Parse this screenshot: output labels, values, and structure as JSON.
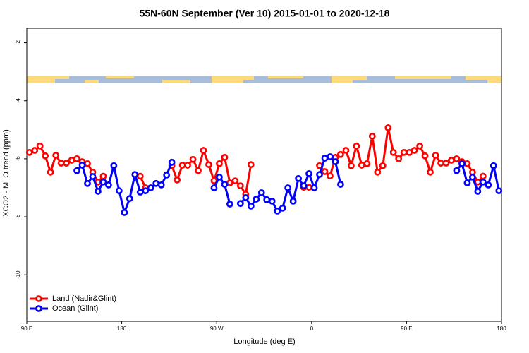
{
  "chart_data": {
    "type": "line",
    "title": "55N-60N September (Ver 10)   2015-01-01 to 2020-12-18",
    "x_label": "Longitude (deg E)",
    "y_label": "XCO2 - MLO trend (ppm)",
    "xlim": [
      90,
      540
    ],
    "ylim": [
      -11.6,
      -1.5
    ],
    "xticks": [
      {
        "value": 90,
        "label": "90 E"
      },
      180,
      {
        "value": 270,
        "label": "90 W"
      },
      {
        "value": 360,
        "label": "0"
      },
      {
        "value": 450,
        "label": "90 E"
      },
      {
        "value": 540,
        "label": "180"
      }
    ],
    "yticks": [
      -2,
      -4,
      -6,
      -8,
      -10
    ],
    "legend": "bottom-left",
    "x": [
      92.5,
      97.5,
      102.5,
      107.5,
      112.5,
      117.5,
      122.5,
      127.5,
      132.5,
      137.5,
      142.5,
      147.5,
      152.5,
      157.5,
      162.5,
      167.5,
      172.5,
      177.5,
      182.5,
      187.5,
      192.5,
      197.5,
      202.5,
      207.5,
      212.5,
      217.5,
      222.5,
      227.5,
      232.5,
      237.5,
      242.5,
      247.5,
      252.5,
      257.5,
      262.5,
      267.5,
      272.5,
      277.5,
      282.5,
      287.5,
      292.5,
      297.5,
      302.5,
      307.5,
      312.5,
      317.5,
      322.5,
      327.5,
      332.5,
      337.5,
      342.5,
      347.5,
      352.5,
      357.5,
      362.5,
      367.5,
      372.5,
      377.5,
      382.5,
      387.5,
      392.5,
      397.5,
      402.5,
      407.5,
      412.5,
      417.5,
      422.5,
      427.5,
      432.5,
      437.5,
      442.5,
      447.5,
      452.5,
      457.5,
      462.5,
      467.5,
      472.5,
      477.5,
      482.5,
      487.5,
      492.5,
      497.5,
      502.5,
      507.5,
      512.5,
      517.5,
      522.5,
      527.5,
      532.5,
      537.5
    ],
    "series": [
      {
        "name": "Land (Nadir&Glint)",
        "color": "#ff0000",
        "values": [
          -5.78,
          -5.71,
          -5.56,
          -5.9,
          -6.46,
          -5.88,
          -6.15,
          -6.15,
          -6.05,
          -6.0,
          -6.1,
          -6.17,
          -6.46,
          -6.8,
          -6.6,
          null,
          null,
          null,
          null,
          null,
          null,
          -6.6,
          -7.0,
          null,
          null,
          null,
          null,
          -6.24,
          -6.73,
          -6.22,
          -6.22,
          -6.02,
          -6.41,
          -5.71,
          -6.2,
          -6.76,
          -6.17,
          -5.95,
          -6.83,
          -6.76,
          -6.93,
          -7.22,
          -6.2,
          null,
          null,
          null,
          null,
          null,
          null,
          null,
          null,
          null,
          -6.98,
          -6.98,
          null,
          -6.24,
          -6.44,
          -6.59,
          -5.95,
          -5.85,
          -5.71,
          -6.24,
          -5.56,
          -6.22,
          -6.17,
          -5.22,
          -6.46,
          -6.24,
          -4.93,
          -5.78,
          -6.0,
          -5.78,
          -5.78,
          -5.71,
          -5.56,
          -5.9,
          -6.46,
          -5.88,
          -6.15,
          -6.15,
          -6.05,
          -6.0,
          -6.1,
          -6.17,
          -6.46,
          -6.8,
          -6.6,
          null,
          null,
          null
        ]
      },
      {
        "name": "Ocean (Glint)",
        "color": "#0000ff",
        "values": [
          null,
          null,
          null,
          null,
          null,
          null,
          null,
          null,
          null,
          -6.41,
          -6.22,
          -6.85,
          -6.61,
          -7.12,
          -6.8,
          -6.9,
          -6.24,
          -7.1,
          -7.85,
          -7.37,
          -6.54,
          -7.15,
          -7.1,
          -7.0,
          -6.85,
          -6.9,
          -6.56,
          -6.12,
          null,
          null,
          null,
          null,
          null,
          null,
          null,
          -7.0,
          -6.63,
          -6.88,
          -7.56,
          null,
          -7.54,
          -7.34,
          -7.63,
          -7.39,
          -7.17,
          -7.41,
          -7.46,
          -7.8,
          -7.7,
          -7.0,
          -7.46,
          -6.68,
          -6.93,
          -6.51,
          -7.0,
          -6.54,
          -5.98,
          -5.93,
          -6.1,
          -6.88,
          null,
          null,
          null,
          null,
          null,
          null,
          null,
          null,
          null,
          null,
          null,
          null,
          null,
          null,
          null,
          null,
          null,
          null,
          null,
          null,
          null,
          -6.41,
          -6.17,
          -6.83,
          -6.63,
          -7.12,
          -6.8,
          -6.9,
          -6.24,
          -7.1
        ]
      }
    ]
  }
}
